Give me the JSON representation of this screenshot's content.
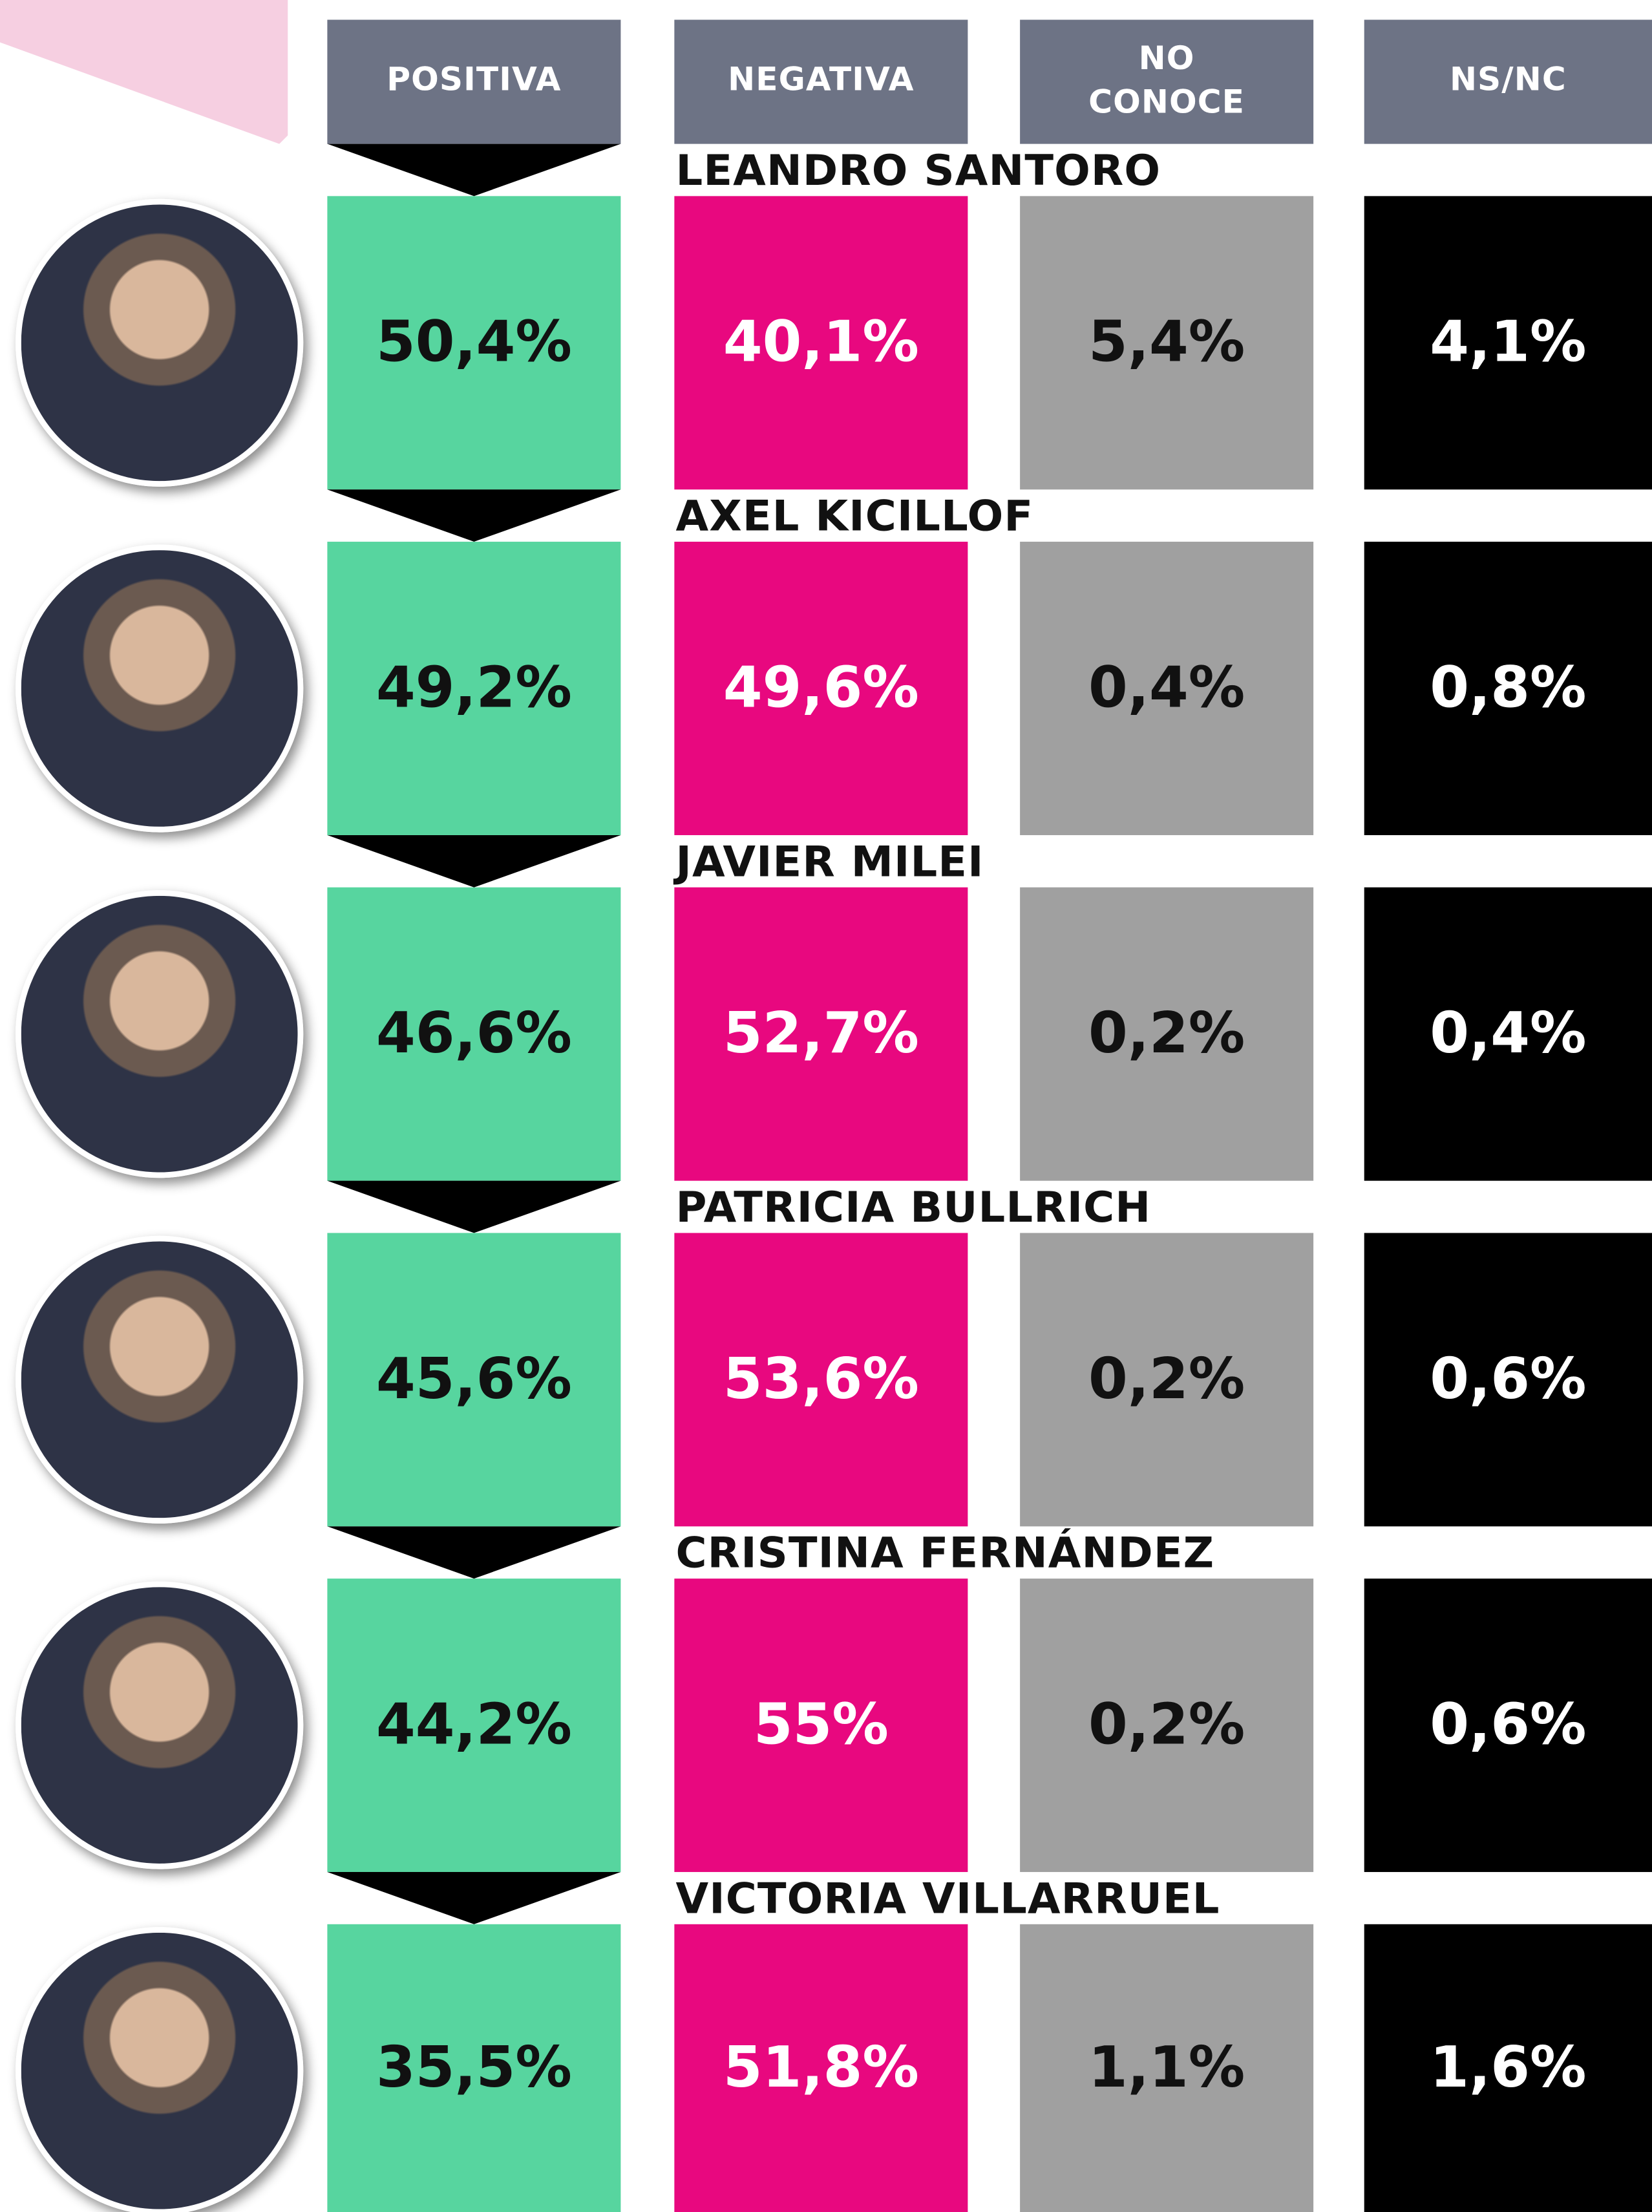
{
  "header": {
    "columns": [
      [
        "POSITIVA"
      ],
      [
        "NEGATIVA"
      ],
      [
        "NO",
        "CONOCE"
      ],
      [
        "NS/NC"
      ]
    ]
  },
  "rows": [
    {
      "name": "LEANDRO SANTORO",
      "cells": [
        "50,4%",
        "40,1%",
        "5,4%",
        "4,1%"
      ]
    },
    {
      "name": "AXEL KICILLOF",
      "cells": [
        "49,2%",
        "49,6%",
        "0,4%",
        "0,8%"
      ]
    },
    {
      "name": "JAVIER MILEI",
      "cells": [
        "46,6%",
        "52,7%",
        "0,2%",
        "0,4%"
      ]
    },
    {
      "name": "PATRICIA BULLRICH",
      "cells": [
        "45,6%",
        "53,6%",
        "0,2%",
        "0,6%"
      ]
    },
    {
      "name": "CRISTINA FERNÁNDEZ",
      "cells": [
        "44,2%",
        "55%",
        "0,2%",
        "0,6%"
      ]
    },
    {
      "name": "VICTORIA VILLARRUEL",
      "cells": [
        "35,5%",
        "51,8%",
        "1,1%",
        "1,6%"
      ]
    }
  ]
}
